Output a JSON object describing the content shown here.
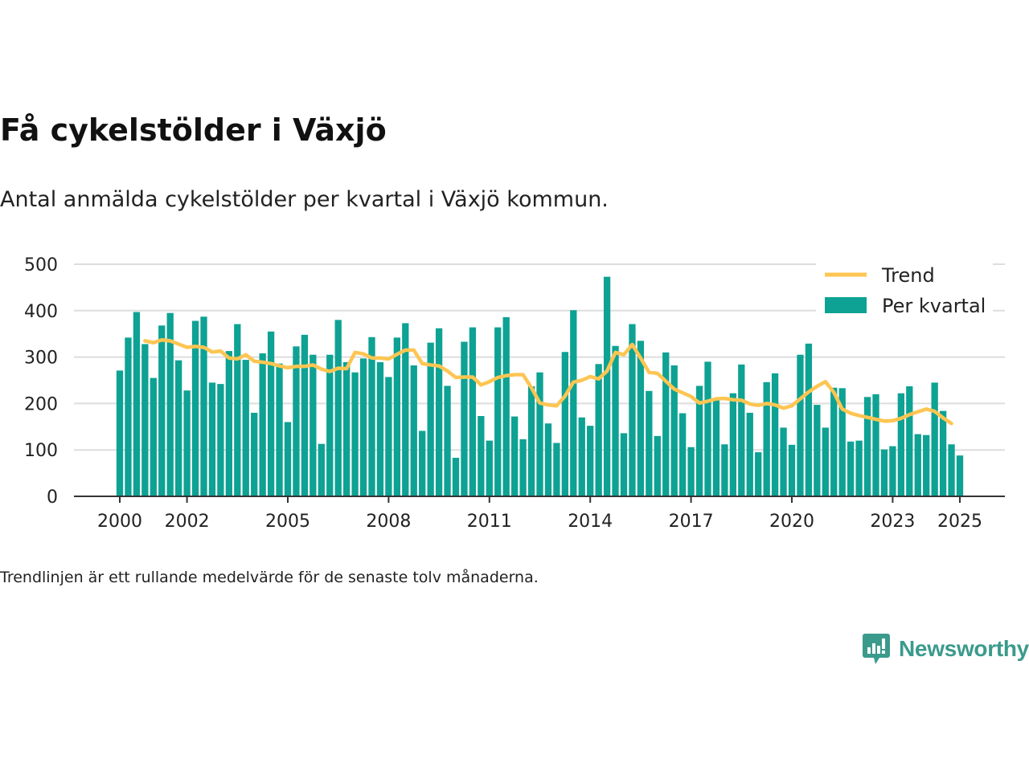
{
  "title": "Få cykelstölder i Växjö",
  "subtitle": "Antal anmälda cykelstölder per kvartal i Växjö kommun.",
  "note": "Trendlinjen är ett rullande medelvärde för de senaste tolv månaderna.",
  "brand": "Newsworthy",
  "colors": {
    "bar": "#0da293",
    "trend": "#fdc552",
    "grid": "#dddddd",
    "axis": "#333333",
    "brand": "#3a9a8c"
  },
  "chart_data": {
    "type": "bar",
    "x_ticks": [
      "2000",
      "2002",
      "2005",
      "2008",
      "2011",
      "2014",
      "2017",
      "2020",
      "2023",
      "2025"
    ],
    "y_ticks": [
      "0",
      "100",
      "200",
      "300",
      "400",
      "500"
    ],
    "ylim": [
      0,
      500
    ],
    "grid": true,
    "legend_position": "top-right",
    "series": [
      {
        "name": "Per kvartal",
        "type": "bar",
        "start": "2000 Q1",
        "values": [
          271,
          342,
          397,
          328,
          255,
          368,
          395,
          293,
          228,
          378,
          387,
          245,
          242,
          313,
          371,
          294,
          180,
          308,
          355,
          286,
          160,
          323,
          348,
          305,
          113,
          305,
          380,
          289,
          267,
          297,
          343,
          289,
          257,
          342,
          373,
          282,
          141,
          331,
          362,
          238,
          83,
          333,
          364,
          173,
          120,
          364,
          386,
          172,
          123,
          237,
          267,
          157,
          115,
          311,
          401,
          170,
          152,
          285,
          473,
          324,
          136,
          371,
          335,
          227,
          130,
          310,
          282,
          179,
          106,
          238,
          290,
          210,
          112,
          222,
          284,
          180,
          95,
          246,
          265,
          148,
          111,
          305,
          329,
          197,
          148,
          234,
          233,
          118,
          120,
          214,
          220,
          101,
          108,
          222,
          237,
          134,
          132,
          245,
          184,
          112,
          88
        ]
      },
      {
        "name": "Trend",
        "type": "line",
        "start": "2000 Q4",
        "values": [
          335,
          331,
          337,
          335,
          328,
          321,
          323,
          321,
          311,
          313,
          298,
          296,
          305,
          291,
          289,
          286,
          281,
          277,
          280,
          280,
          283,
          274,
          269,
          276,
          275,
          310,
          307,
          298,
          298,
          296,
          306,
          315,
          315,
          286,
          283,
          281,
          270,
          256,
          257,
          257,
          240,
          247,
          256,
          260,
          262,
          262,
          234,
          201,
          197,
          195,
          216,
          246,
          250,
          258,
          253,
          270,
          310,
          305,
          327,
          298,
          267,
          265,
          248,
          231,
          223,
          215,
          201,
          205,
          210,
          211,
          208,
          207,
          199,
          196,
          200,
          197,
          190,
          195,
          210,
          225,
          237,
          247,
          224,
          188,
          179,
          174,
          170,
          166,
          162,
          163,
          168,
          176,
          182,
          188,
          183,
          169,
          157
        ]
      }
    ]
  }
}
